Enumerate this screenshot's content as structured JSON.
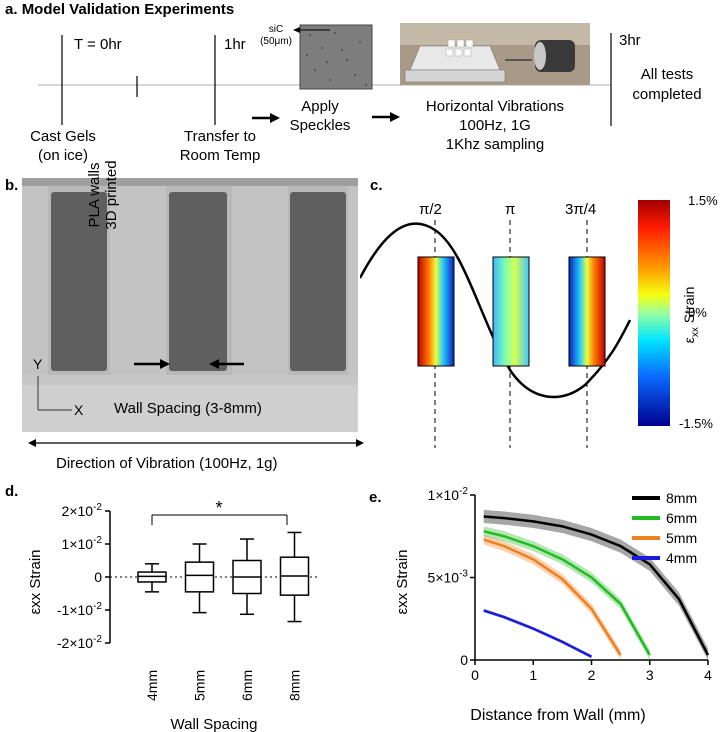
{
  "panel_a": {
    "label": "a.",
    "title": "Model Validation Experiments",
    "t0": "T = 0hr",
    "t1": "1hr",
    "t3": "3hr",
    "cast_line1": "Cast Gels",
    "cast_line2": "(on ice)",
    "transfer_line1": "Transfer to",
    "transfer_line2": "Room Temp",
    "apply_line1": "Apply",
    "apply_line2": "Speckles",
    "sic_line1": "siC",
    "sic_line2": "(50μm)",
    "horiz_line1": "Horizontal Vibrations",
    "horiz_line2": "100Hz, 1G",
    "horiz_line3": "1Khz sampling",
    "done_line1": "All tests",
    "done_line2": "completed"
  },
  "panel_b": {
    "label": "b.",
    "pla_line1": "PLA walls",
    "pla_line2": "3D printed",
    "axis_y": "Y",
    "axis_x": "X",
    "wall_spacing": "Wall Spacing (3-8mm)",
    "direction": "Direction of Vibration (100Hz, 1g)"
  },
  "panel_c": {
    "label": "c.",
    "phase_labels": [
      "π/2",
      "π",
      "3π/4"
    ],
    "colorbar_ticks": [
      "1.5%",
      "0%",
      "-1.5%"
    ],
    "colorbar_title_prefix": "ε",
    "colorbar_title_sub": "xx",
    "colorbar_title_suffix": " Strain"
  },
  "panel_d": {
    "label": "d.",
    "significance": "*",
    "chart_data": {
      "type": "box",
      "title": "",
      "xlabel": "Wall Spacing",
      "ylabel": "εxx Strain",
      "ylim": [
        -0.02,
        0.02
      ],
      "yticks": [
        "2×10-2",
        "1×10-2",
        "0",
        "-1×10-2",
        "-2×10-2"
      ],
      "yticks_base": [
        "2×10",
        "1×10",
        "0",
        "-1×10",
        "-2×10"
      ],
      "yticks_exp": [
        "-2",
        "-2",
        "",
        "-2",
        "-2"
      ],
      "categories": [
        "4mm",
        "5mm",
        "6mm",
        "8mm"
      ],
      "boxes": [
        {
          "name": "4mm",
          "min": -0.0045,
          "q1": -0.0015,
          "median": 0.0002,
          "q3": 0.0015,
          "max": 0.004
        },
        {
          "name": "5mm",
          "min": -0.0108,
          "q1": -0.0045,
          "median": 0.0005,
          "q3": 0.0045,
          "max": 0.01
        },
        {
          "name": "6mm",
          "min": -0.0113,
          "q1": -0.005,
          "median": 0.0,
          "q3": 0.005,
          "max": 0.0115
        },
        {
          "name": "8mm",
          "min": -0.0135,
          "q1": -0.0055,
          "median": 0.0003,
          "q3": 0.006,
          "max": 0.0135
        }
      ]
    }
  },
  "panel_e": {
    "label": "e.",
    "chart_data": {
      "type": "line",
      "xlabel": "Distance from Wall (mm)",
      "ylabel": "εxx Strain",
      "xlim": [
        0,
        4
      ],
      "ylim": [
        0,
        0.01
      ],
      "xticks": [
        "0",
        "1",
        "2",
        "3",
        "4"
      ],
      "yticks_base": [
        "1×10",
        "5×10",
        "0"
      ],
      "yticks_exp": [
        "-2",
        "-3",
        ""
      ],
      "ytick_values": [
        0.01,
        0.005,
        0
      ],
      "series": [
        {
          "name": "8mm",
          "color": "#000000",
          "x": [
            0.15,
            0.5,
            1.0,
            1.5,
            2.0,
            2.5,
            3.0,
            3.5,
            4.0
          ],
          "y": [
            0.0087,
            0.0086,
            0.0084,
            0.0081,
            0.0076,
            0.0069,
            0.0058,
            0.0037,
            0.0003
          ],
          "band": 0.0004
        },
        {
          "name": "6mm",
          "color": "#22bb22",
          "x": [
            0.15,
            0.5,
            1.0,
            1.5,
            2.0,
            2.5,
            3.0
          ],
          "y": [
            0.0078,
            0.0075,
            0.0069,
            0.0061,
            0.005,
            0.0034,
            0.0003
          ],
          "band": 0.0003
        },
        {
          "name": "5mm",
          "color": "#f07f1e",
          "x": [
            0.15,
            0.5,
            1.0,
            1.5,
            2.0,
            2.5
          ],
          "y": [
            0.0073,
            0.0069,
            0.0061,
            0.0049,
            0.0031,
            0.0003
          ],
          "band": 0.0003
        },
        {
          "name": "4mm",
          "color": "#1a1adb",
          "x": [
            0.15,
            0.5,
            1.0,
            1.5,
            2.0
          ],
          "y": [
            0.003,
            0.0026,
            0.0019,
            0.0011,
            0.0002
          ],
          "band": 0.0001
        }
      ]
    }
  }
}
